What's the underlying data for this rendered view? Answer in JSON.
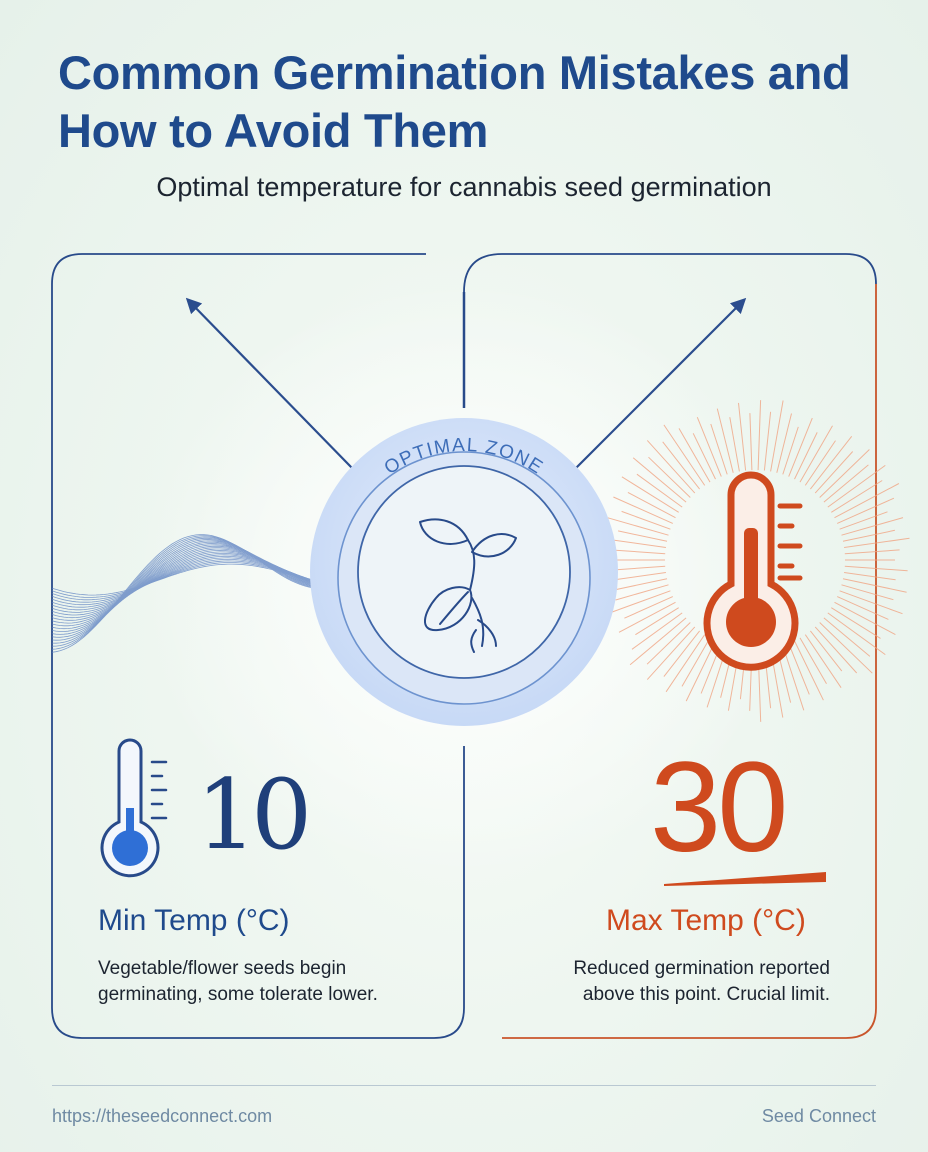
{
  "title": "Common Germination Mistakes and How to Avoid Them",
  "subtitle": "Optimal temperature for cannabis seed germination",
  "center": {
    "label": "OPTIMAL ZONE",
    "icon": "seedling-icon"
  },
  "min": {
    "value": "10",
    "label": "Min Temp (°C)",
    "description": "Vegetable/flower seeds begin germinating, some tolerate lower.",
    "icon": "thermometer-cold-icon",
    "color": "#1f4a8c"
  },
  "max": {
    "value": "30",
    "label": "Max Temp (°C)",
    "description": "Reduced germination reported above this point. Crucial limit.",
    "icon": "thermometer-hot-icon",
    "color": "#cf4a1e"
  },
  "footer": {
    "url": "https://theseedconnect.com",
    "brand": "Seed Connect"
  }
}
